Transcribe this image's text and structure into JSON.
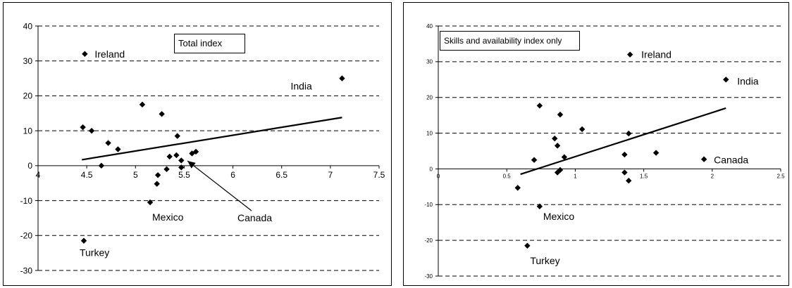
{
  "chart_data": [
    {
      "type": "scatter",
      "legend_label": "Total index",
      "xlim": [
        4,
        7.5
      ],
      "ylim": [
        -30,
        40
      ],
      "x_ticks": [
        "4",
        "4.5",
        "5",
        "5.5",
        "6",
        "6.5",
        "7",
        "7.5"
      ],
      "y_ticks": [
        "40",
        "30",
        "20",
        "10",
        "0",
        "-10",
        "-20",
        "-30"
      ],
      "grid": "dashed horizontal",
      "x_axis_at_y": 0,
      "points": [
        {
          "x": 4.48,
          "y": 32,
          "label": "Ireland"
        },
        {
          "x": 7.12,
          "y": 25,
          "label": "India"
        },
        {
          "x": 4.47,
          "y": -21.5,
          "label": "Turkey"
        },
        {
          "x": 5.15,
          "y": -10.5,
          "label": "Mexico"
        },
        {
          "x": 5.47,
          "y": 1.5,
          "label": "Canada"
        },
        {
          "x": 4.46,
          "y": 11
        },
        {
          "x": 4.55,
          "y": 10
        },
        {
          "x": 4.65,
          "y": 0
        },
        {
          "x": 4.72,
          "y": 6.5
        },
        {
          "x": 4.82,
          "y": 4.7
        },
        {
          "x": 5.07,
          "y": 17.5
        },
        {
          "x": 5.23,
          "y": -2.7
        },
        {
          "x": 5.22,
          "y": -5.2
        },
        {
          "x": 5.27,
          "y": 14.8
        },
        {
          "x": 5.32,
          "y": -1
        },
        {
          "x": 5.35,
          "y": 2.6
        },
        {
          "x": 5.42,
          "y": 3
        },
        {
          "x": 5.43,
          "y": 8.5
        },
        {
          "x": 5.47,
          "y": -0.5
        },
        {
          "x": 5.58,
          "y": 3.5
        },
        {
          "x": 5.62,
          "y": 4
        }
      ],
      "trendline": {
        "x": [
          4.45,
          7.12
        ],
        "y": [
          1.7,
          13.8
        ]
      },
      "annotations": [
        {
          "text": "Ireland",
          "for": "Ireland"
        },
        {
          "text": "India",
          "for": "India"
        },
        {
          "text": "Mexico",
          "for": "Mexico"
        },
        {
          "text": "Turkey",
          "for": "Turkey"
        },
        {
          "text": "Canada",
          "for": "Canada",
          "arrow": true
        }
      ]
    },
    {
      "type": "scatter",
      "legend_label": "Skills and availability index only",
      "xlim": [
        0,
        2.5
      ],
      "ylim": [
        -30,
        40
      ],
      "x_ticks": [
        "0",
        "0.5",
        "1",
        "1.5",
        "2",
        "2.5"
      ],
      "y_ticks": [
        "40",
        "30",
        "20",
        "10",
        "0",
        "-10",
        "-20",
        "-30"
      ],
      "grid": "dashed horizontal",
      "x_axis_at_y": 0,
      "points": [
        {
          "x": 1.4,
          "y": 32,
          "label": "Ireland"
        },
        {
          "x": 2.1,
          "y": 25,
          "label": "India"
        },
        {
          "x": 0.65,
          "y": -21.5,
          "label": "Turkey"
        },
        {
          "x": 0.74,
          "y": -10.5,
          "label": "Mexico"
        },
        {
          "x": 1.94,
          "y": 2.7,
          "label": "Canada"
        },
        {
          "x": 0.58,
          "y": -5.3
        },
        {
          "x": 0.7,
          "y": 2.5
        },
        {
          "x": 0.74,
          "y": 17.7
        },
        {
          "x": 0.85,
          "y": 8.5
        },
        {
          "x": 0.87,
          "y": 6.5
        },
        {
          "x": 0.87,
          "y": -1
        },
        {
          "x": 0.89,
          "y": 15.2
        },
        {
          "x": 0.89,
          "y": -0.3
        },
        {
          "x": 0.92,
          "y": 3.3
        },
        {
          "x": 1.05,
          "y": 11.1
        },
        {
          "x": 1.36,
          "y": 4
        },
        {
          "x": 1.36,
          "y": -1
        },
        {
          "x": 1.39,
          "y": 9.9
        },
        {
          "x": 1.39,
          "y": -3.3
        },
        {
          "x": 1.59,
          "y": 4.5
        }
      ],
      "trendline": {
        "x": [
          0.6,
          2.1
        ],
        "y": [
          -1.5,
          17
        ]
      },
      "annotations": [
        {
          "text": "Ireland",
          "for": "Ireland"
        },
        {
          "text": "India",
          "for": "India"
        },
        {
          "text": "Mexico",
          "for": "Mexico"
        },
        {
          "text": "Turkey",
          "for": "Turkey"
        },
        {
          "text": "Canada",
          "for": "Canada"
        }
      ]
    }
  ]
}
